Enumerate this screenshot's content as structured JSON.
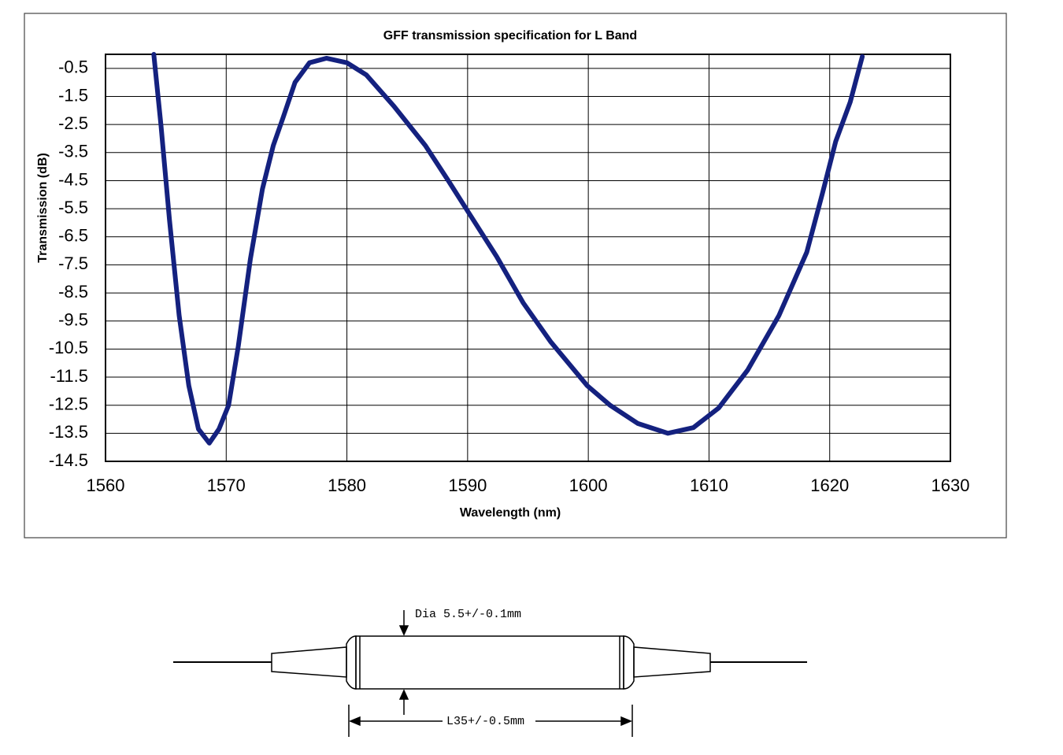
{
  "chart_data": {
    "type": "line",
    "title": "GFF transmission specification for L Band",
    "x_label": "Wavelength (nm)",
    "y_label": "Transmission (dB)",
    "x": [
      1564.0,
      1564.6,
      1565.3,
      1566.1,
      1566.9,
      1567.7,
      1568.6,
      1569.4,
      1570.2,
      1571.0,
      1572.0,
      1573.0,
      1573.9,
      1574.7,
      1575.7,
      1576.9,
      1578.3,
      1580.0,
      1581.6,
      1583.9,
      1586.5,
      1588.4,
      1590.1,
      1592.4,
      1594.6,
      1596.9,
      1599.9,
      1601.8,
      1604.1,
      1606.6,
      1608.7,
      1610.8,
      1613.2,
      1615.8,
      1618.1,
      1619.4,
      1620.5,
      1621.7,
      1622.7
    ],
    "series": [
      {
        "color": "#14217f",
        "values": [
          0,
          -2.55,
          -5.9,
          -9.3,
          -11.8,
          -13.35,
          -13.85,
          -13.35,
          -12.5,
          -10.4,
          -7.3,
          -4.8,
          -3.25,
          -2.27,
          -1.0,
          -0.3,
          -0.14,
          -0.3,
          -0.73,
          -1.85,
          -3.25,
          -4.5,
          -5.65,
          -7.2,
          -8.85,
          -10.25,
          -11.8,
          -12.5,
          -13.15,
          -13.5,
          -13.3,
          -12.6,
          -11.25,
          -9.3,
          -7.05,
          -4.95,
          -3.1,
          -1.7,
          -0.08
        ]
      }
    ],
    "xlim": [
      1560,
      1630
    ],
    "xticks": [
      1560,
      1570,
      1580,
      1590,
      1600,
      1610,
      1620,
      1630
    ],
    "ylim": [
      -14.5,
      0
    ],
    "yticks": [
      -0.5,
      -1.5,
      -2.5,
      -3.5,
      -4.5,
      -5.5,
      -6.5,
      -7.5,
      -8.5,
      -9.5,
      -10.5,
      -11.5,
      -12.5,
      -13.5,
      -14.5
    ],
    "grid": true
  },
  "diagram": {
    "diameter_label": "Dia 5.5+/-0.1mm",
    "length_label": "L35+/-0.5mm"
  }
}
